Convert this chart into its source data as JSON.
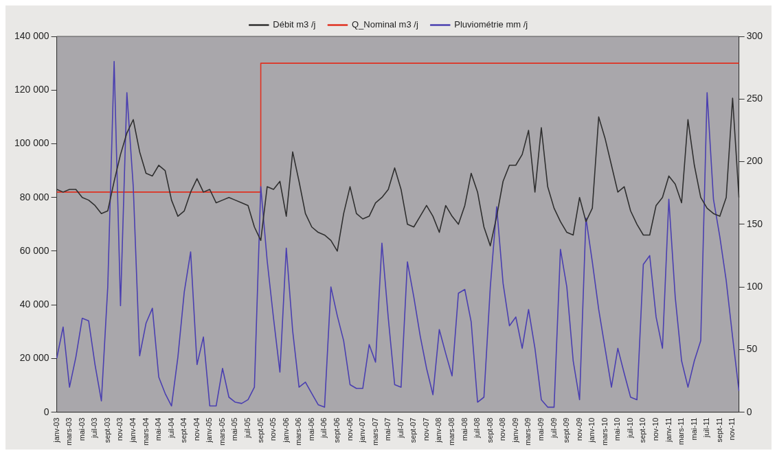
{
  "chart_data": {
    "type": "line",
    "categories": [
      "janv-03",
      null,
      "mars-03",
      null,
      "mai-03",
      null,
      "juil-03",
      null,
      "sept-03",
      null,
      "nov-03",
      null,
      "janv-04",
      null,
      "mars-04",
      null,
      "mai-04",
      null,
      "juil-04",
      null,
      "sept-04",
      null,
      "nov-04",
      null,
      "janv-05",
      null,
      "mars-05",
      null,
      "mai-05",
      null,
      "juil-05",
      null,
      "sept-05",
      null,
      "nov-05",
      null,
      "janv-06",
      null,
      "mars-06",
      null,
      "mai-06",
      null,
      "juil-06",
      null,
      "sept-06",
      null,
      "nov-06",
      null,
      "janv-07",
      null,
      "mars-07",
      null,
      "mai-07",
      null,
      "juil-07",
      null,
      "sept-07",
      null,
      "nov-07",
      null,
      "janv-08",
      null,
      "mars-08",
      null,
      "mai-08",
      null,
      "juil-08",
      null,
      "sept-08",
      null,
      "nov-08",
      null,
      "janv-09",
      null,
      "mars-09",
      null,
      "mai-09",
      null,
      "juil-09",
      null,
      "sept-09",
      null,
      "nov-09",
      null,
      "janv-10",
      null,
      "mars-10",
      null,
      "mai-10",
      null,
      "juil-10",
      null,
      "sept-10",
      null,
      "nov-10",
      null,
      "janv-11",
      null,
      "mars-11",
      null,
      "mai-11",
      null,
      "juil-11",
      null,
      "sept-11",
      null,
      "nov-11",
      null
    ],
    "series": [
      {
        "name": "Débit m3 /j",
        "type": "line",
        "color": "#2f2f2f",
        "values": [
          83000,
          82000,
          83000,
          83000,
          80000,
          79000,
          77000,
          74000,
          75000,
          86000,
          96000,
          104000,
          109000,
          97000,
          89000,
          88000,
          92000,
          90000,
          79000,
          73000,
          75000,
          82000,
          87000,
          82000,
          83000,
          78000,
          79000,
          80000,
          79000,
          78000,
          77000,
          69000,
          64000,
          84000,
          83000,
          86000,
          73000,
          97000,
          86000,
          74000,
          69000,
          67000,
          66000,
          64000,
          60000,
          74000,
          84000,
          74000,
          72000,
          73000,
          78000,
          80000,
          83000,
          91000,
          83000,
          70000,
          69000,
          73000,
          77000,
          73000,
          67000,
          77000,
          73000,
          70000,
          77000,
          89000,
          82000,
          69000,
          62000,
          73000,
          86000,
          92000,
          92000,
          96000,
          105000,
          82000,
          106000,
          84000,
          76000,
          71000,
          67000,
          66000,
          80000,
          71000,
          76000,
          110000,
          102000,
          92000,
          82000,
          84000,
          75000,
          70000,
          66000,
          66000,
          77000,
          80000,
          88000,
          85000,
          78000,
          109000,
          92000,
          80000,
          76000,
          74000,
          73000,
          80000,
          117000,
          80000
        ]
      },
      {
        "name": "Q_Nominal m3 /j",
        "type": "step",
        "color": "#e03020",
        "values": [
          82000,
          82000,
          82000,
          82000,
          82000,
          82000,
          82000,
          82000,
          82000,
          82000,
          82000,
          82000,
          82000,
          82000,
          82000,
          82000,
          82000,
          82000,
          82000,
          82000,
          82000,
          82000,
          82000,
          82000,
          82000,
          82000,
          82000,
          82000,
          82000,
          82000,
          82000,
          82000,
          130000,
          130000,
          130000,
          130000,
          130000,
          130000,
          130000,
          130000,
          130000,
          130000,
          130000,
          130000,
          130000,
          130000,
          130000,
          130000,
          130000,
          130000,
          130000,
          130000,
          130000,
          130000,
          130000,
          130000,
          130000,
          130000,
          130000,
          130000,
          130000,
          130000,
          130000,
          130000,
          130000,
          130000,
          130000,
          130000,
          130000,
          130000,
          130000,
          130000,
          130000,
          130000,
          130000,
          130000,
          130000,
          130000,
          130000,
          130000,
          130000,
          130000,
          130000,
          130000,
          130000,
          130000,
          130000,
          130000,
          130000,
          130000,
          130000,
          130000,
          130000,
          130000,
          130000,
          130000,
          130000,
          130000,
          130000,
          130000,
          130000,
          130000,
          130000,
          130000,
          130000,
          130000,
          130000,
          130000
        ]
      },
      {
        "name": "Pluviométrie mm /j",
        "type": "line",
        "axis": "y2",
        "color": "#4a3fb0",
        "values": [
          43,
          68,
          20,
          44,
          75,
          73,
          38,
          9,
          100,
          280,
          85,
          255,
          180,
          45,
          71,
          83,
          28,
          15,
          5,
          44,
          96,
          128,
          38,
          60,
          5,
          5,
          35,
          12,
          8,
          7,
          10,
          20,
          180,
          121,
          75,
          32,
          131,
          65,
          20,
          24,
          15,
          6,
          4,
          100,
          77,
          57,
          22,
          19,
          19,
          54,
          40,
          135,
          75,
          22,
          20,
          120,
          92,
          61,
          35,
          14,
          66,
          47,
          29,
          95,
          98,
          72,
          8,
          12,
          100,
          164,
          103,
          69,
          76,
          51,
          82,
          51,
          10,
          4,
          4,
          130,
          100,
          41,
          10,
          155,
          120,
          82,
          51,
          20,
          51,
          31,
          12,
          10,
          118,
          125,
          76,
          51,
          170,
          92,
          41,
          20,
          41,
          57,
          255,
          170,
          140,
          105,
          60,
          17
        ]
      }
    ],
    "ylim": [
      0,
      140000
    ],
    "yticks": [
      {
        "value": 0,
        "label": "0"
      },
      {
        "value": 20000,
        "label": "20 000"
      },
      {
        "value": 40000,
        "label": "40 000"
      },
      {
        "value": 60000,
        "label": "60 000"
      },
      {
        "value": 80000,
        "label": "80 000"
      },
      {
        "value": 100000,
        "label": "100 000"
      },
      {
        "value": 120000,
        "label": "120 000"
      },
      {
        "value": 140000,
        "label": "140 000"
      }
    ],
    "y2lim": [
      0,
      300
    ],
    "y2ticks": [
      0,
      50,
      100,
      150,
      200,
      250,
      300
    ],
    "legend": "top",
    "grid": false,
    "marker": "none"
  }
}
